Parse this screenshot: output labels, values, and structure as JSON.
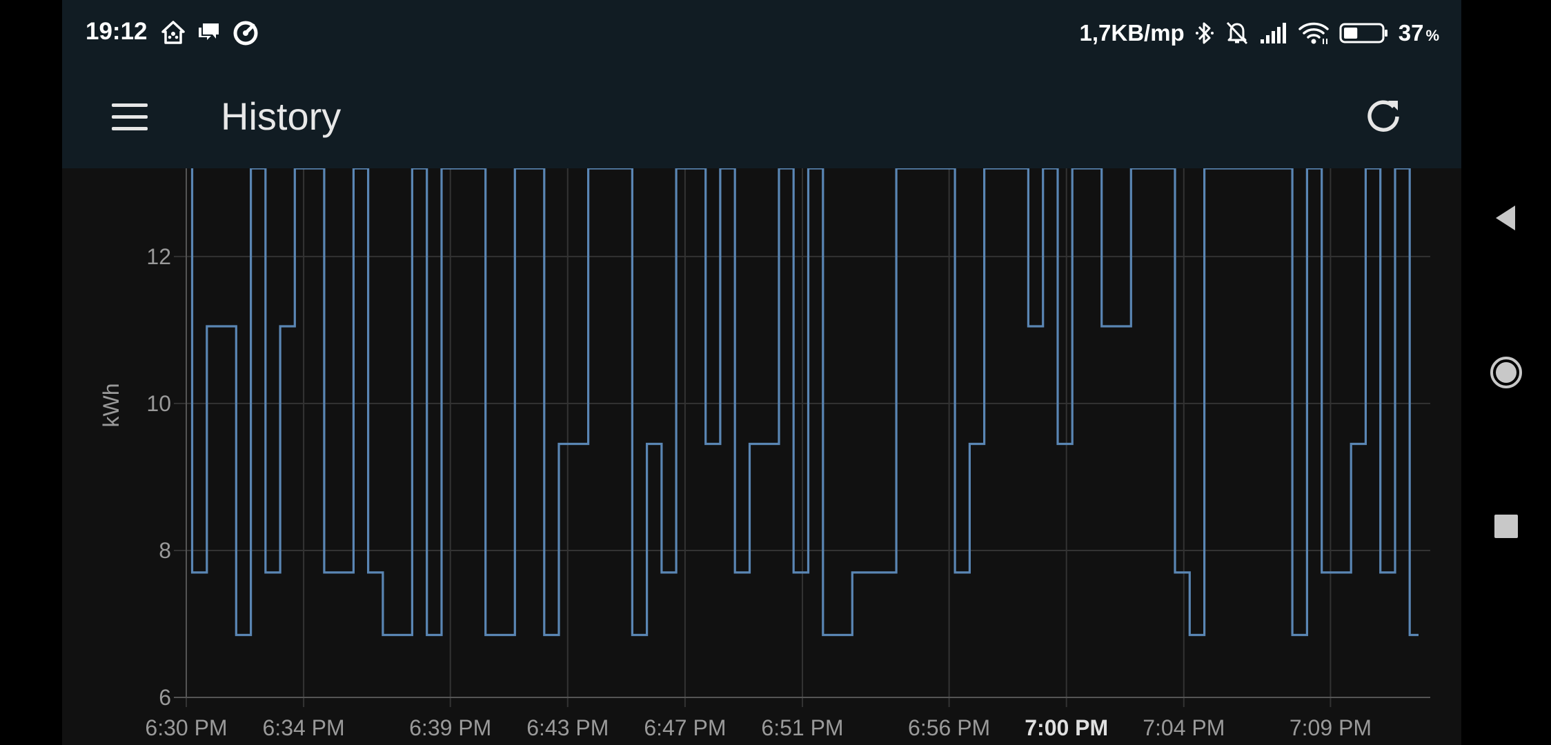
{
  "status_bar": {
    "time": "19:12",
    "left_icons": [
      "home-assistant-icon",
      "chat-icon",
      "speedometer-icon"
    ],
    "network_rate": "1,7KB/mp",
    "right_icons": [
      "bluetooth-icon",
      "bell-off-icon",
      "signal-icon",
      "wifi-icon",
      "battery-icon"
    ],
    "battery_level": 0.37,
    "battery_percent": "37",
    "battery_unit": "%"
  },
  "app_bar": {
    "title": "History",
    "menu_icon": "menu-icon",
    "refresh_icon": "refresh-icon"
  },
  "nav_bar": {
    "buttons": [
      "back-icon",
      "home-icon",
      "recents-icon"
    ]
  },
  "colors": {
    "bar_bg": "#111c23",
    "chart_bg": "#111111",
    "series": "#5a86b4",
    "grid": "#333333",
    "axis_text": "#9a9a9a"
  },
  "chart_data": {
    "type": "line",
    "step": true,
    "ylabel": "kWh",
    "ylim": [
      6,
      13.2
    ],
    "yticks": [
      6,
      8,
      10,
      12
    ],
    "xlim_minutes": [
      0,
      42.4
    ],
    "xticks": [
      {
        "label": "6:30 PM",
        "t": 0,
        "bold": false
      },
      {
        "label": "6:34 PM",
        "t": 4,
        "bold": false
      },
      {
        "label": "6:39 PM",
        "t": 9,
        "bold": false
      },
      {
        "label": "6:43 PM",
        "t": 13,
        "bold": false
      },
      {
        "label": "6:47 PM",
        "t": 17,
        "bold": false
      },
      {
        "label": "6:51 PM",
        "t": 21,
        "bold": false
      },
      {
        "label": "6:56 PM",
        "t": 26,
        "bold": false
      },
      {
        "label": "7:00 PM",
        "t": 30,
        "bold": true
      },
      {
        "label": "7:04 PM",
        "t": 34,
        "bold": false
      },
      {
        "label": "7:09 PM",
        "t": 39,
        "bold": false
      }
    ],
    "grid": true,
    "series": [
      {
        "points": [
          [
            0.2,
            13.2
          ],
          [
            0.2,
            7.7
          ],
          [
            0.7,
            7.7
          ],
          [
            0.7,
            11.05
          ],
          [
            1.7,
            11.05
          ],
          [
            1.7,
            6.85
          ],
          [
            2.2,
            6.85
          ],
          [
            2.2,
            13.2
          ],
          [
            2.7,
            13.2
          ],
          [
            2.7,
            7.7
          ],
          [
            3.2,
            7.7
          ],
          [
            3.2,
            11.05
          ],
          [
            3.7,
            11.05
          ],
          [
            3.7,
            13.2
          ],
          [
            4.7,
            13.2
          ],
          [
            4.7,
            7.7
          ],
          [
            5.7,
            7.7
          ],
          [
            5.7,
            13.2
          ],
          [
            6.2,
            13.2
          ],
          [
            6.2,
            7.7
          ],
          [
            6.7,
            7.7
          ],
          [
            6.7,
            6.85
          ],
          [
            7.7,
            6.85
          ],
          [
            7.7,
            13.2
          ],
          [
            8.2,
            13.2
          ],
          [
            8.2,
            6.85
          ],
          [
            8.7,
            6.85
          ],
          [
            8.7,
            13.2
          ],
          [
            10.2,
            13.2
          ],
          [
            10.2,
            6.85
          ],
          [
            11.2,
            6.85
          ],
          [
            11.2,
            13.2
          ],
          [
            12.2,
            13.2
          ],
          [
            12.2,
            6.85
          ],
          [
            12.7,
            6.85
          ],
          [
            12.7,
            9.45
          ],
          [
            13.7,
            9.45
          ],
          [
            13.7,
            13.2
          ],
          [
            15.2,
            13.2
          ],
          [
            15.2,
            6.85
          ],
          [
            15.7,
            6.85
          ],
          [
            15.7,
            9.45
          ],
          [
            16.2,
            9.45
          ],
          [
            16.2,
            7.7
          ],
          [
            16.7,
            7.7
          ],
          [
            16.7,
            13.2
          ],
          [
            17.7,
            13.2
          ],
          [
            17.7,
            9.45
          ],
          [
            18.2,
            9.45
          ],
          [
            18.2,
            13.2
          ],
          [
            18.7,
            13.2
          ],
          [
            18.7,
            7.7
          ],
          [
            19.2,
            7.7
          ],
          [
            19.2,
            9.45
          ],
          [
            20.2,
            9.45
          ],
          [
            20.2,
            13.2
          ],
          [
            20.7,
            13.2
          ],
          [
            20.7,
            7.7
          ],
          [
            21.2,
            7.7
          ],
          [
            21.2,
            13.2
          ],
          [
            21.7,
            13.2
          ],
          [
            21.7,
            6.85
          ],
          [
            22.7,
            6.85
          ],
          [
            22.7,
            7.7
          ],
          [
            24.2,
            7.7
          ],
          [
            24.2,
            13.2
          ],
          [
            26.2,
            13.2
          ],
          [
            26.2,
            7.7
          ],
          [
            26.7,
            7.7
          ],
          [
            26.7,
            9.45
          ],
          [
            27.2,
            9.45
          ],
          [
            27.2,
            13.2
          ],
          [
            28.7,
            13.2
          ],
          [
            28.7,
            11.05
          ],
          [
            29.2,
            11.05
          ],
          [
            29.2,
            13.2
          ],
          [
            29.7,
            13.2
          ],
          [
            29.7,
            9.45
          ],
          [
            30.2,
            9.45
          ],
          [
            30.2,
            13.2
          ],
          [
            31.2,
            13.2
          ],
          [
            31.2,
            11.05
          ],
          [
            32.2,
            11.05
          ],
          [
            32.2,
            13.2
          ],
          [
            33.7,
            13.2
          ],
          [
            33.7,
            7.7
          ],
          [
            34.2,
            7.7
          ],
          [
            34.2,
            6.85
          ],
          [
            34.7,
            6.85
          ],
          [
            34.7,
            13.2
          ],
          [
            37.7,
            13.2
          ],
          [
            37.7,
            6.85
          ],
          [
            38.2,
            6.85
          ],
          [
            38.2,
            13.2
          ],
          [
            38.7,
            13.2
          ],
          [
            38.7,
            7.7
          ],
          [
            39.7,
            7.7
          ],
          [
            39.7,
            9.45
          ],
          [
            40.2,
            9.45
          ],
          [
            40.2,
            13.2
          ],
          [
            40.7,
            13.2
          ],
          [
            40.7,
            7.7
          ],
          [
            41.2,
            7.7
          ],
          [
            41.2,
            13.2
          ],
          [
            41.7,
            13.2
          ],
          [
            41.7,
            6.85
          ],
          [
            42.0,
            6.85
          ]
        ]
      }
    ]
  }
}
